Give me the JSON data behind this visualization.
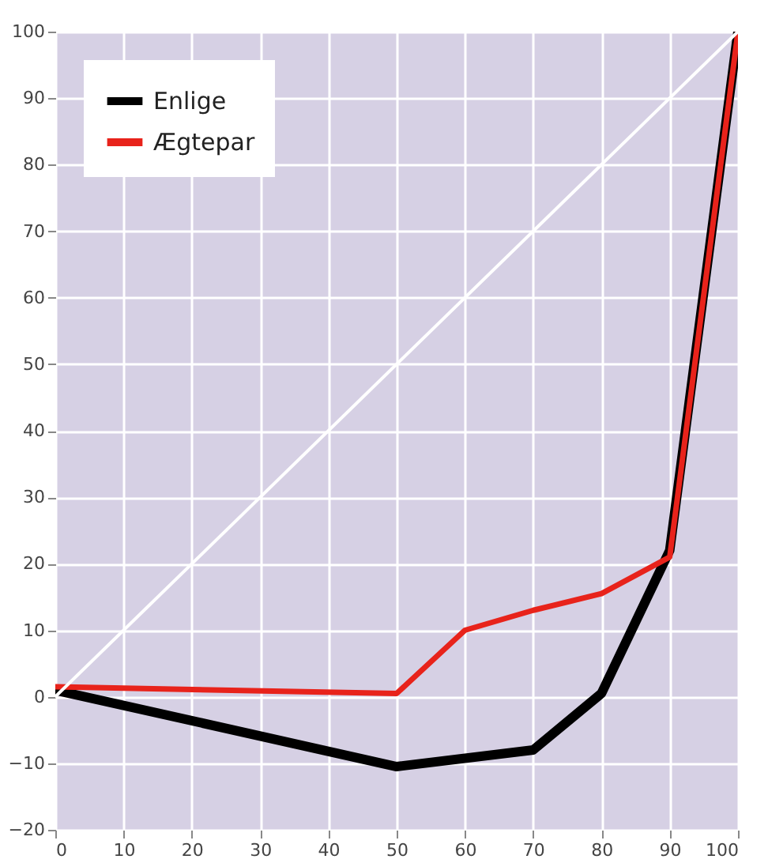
{
  "chart_data": {
    "type": "line",
    "x": [
      0,
      50,
      70,
      80,
      90,
      100
    ],
    "series": [
      {
        "name": "Enlige",
        "color": "#000000",
        "values": [
          1,
          -10.5,
          -8,
          0.5,
          22,
          100
        ]
      },
      {
        "name": "Ægtepar",
        "color": "#e8231b",
        "x": [
          0,
          50,
          60,
          70,
          80,
          90,
          100
        ],
        "values": [
          1.5,
          0.5,
          10,
          13,
          15.5,
          21,
          100
        ]
      },
      {
        "type": "line",
        "color": "#ffffff",
        "x": [
          0,
          100
        ],
        "values": [
          0,
          100
        ]
      }
    ],
    "xlim": [
      0,
      100
    ],
    "xticks": [
      0,
      10,
      20,
      30,
      40,
      50,
      60,
      70,
      80,
      90,
      100
    ],
    "ylim": [
      -20,
      100
    ],
    "yticks": [
      -20,
      -10,
      0,
      10,
      20,
      30,
      40,
      50,
      60,
      70,
      80,
      90,
      100
    ],
    "grid": true,
    "legend": "top left",
    "marker": "none",
    "line_style": "solid"
  }
}
